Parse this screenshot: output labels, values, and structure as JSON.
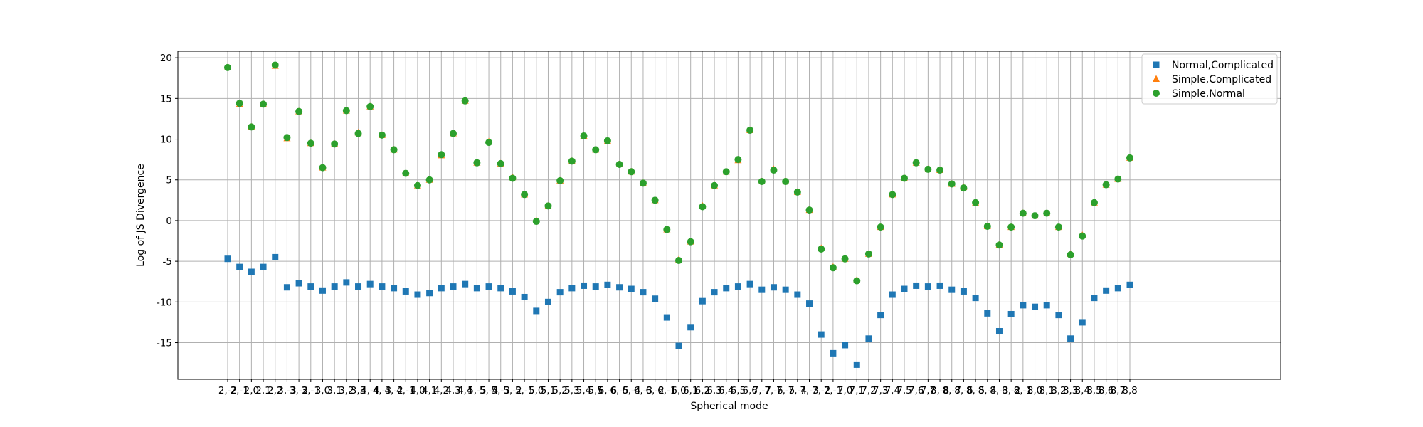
{
  "chart_data": {
    "type": "scatter",
    "title": "",
    "xlabel": "Spherical mode",
    "ylabel": "Log of JS Divergence",
    "ylim": [
      -19.5,
      20.8
    ],
    "yticks": [
      -15,
      -10,
      -5,
      0,
      5,
      10,
      15,
      20
    ],
    "grid": true,
    "legend_position": "top-right",
    "categories": [
      "2,-2",
      "2,-1",
      "2,0",
      "2,1",
      "2,2",
      "3,-3",
      "3,-2",
      "3,-1",
      "3,0",
      "3,1",
      "3,2",
      "3,3",
      "4,-4",
      "4,-3",
      "4,-2",
      "4,-1",
      "4,0",
      "4,1",
      "4,2",
      "4,3",
      "4,4",
      "5,-5",
      "5,-4",
      "5,-3",
      "5,-2",
      "5,-1",
      "5,0",
      "5,1",
      "5,2",
      "5,3",
      "5,4",
      "5,5",
      "6,-6",
      "6,-5",
      "6,-4",
      "6,-3",
      "6,-2",
      "6,-1",
      "6,0",
      "6,1",
      "6,2",
      "6,3",
      "6,4",
      "6,5",
      "6,6",
      "7,-7",
      "7,-6",
      "7,-5",
      "7,-4",
      "7,-3",
      "7,-2",
      "7,-1",
      "7,0",
      "7,1",
      "7,2",
      "7,3",
      "7,4",
      "7,5",
      "7,6",
      "7,7",
      "8,-8",
      "8,-7",
      "8,-6",
      "8,-5",
      "8,-4",
      "8,-3",
      "8,-2",
      "8,-1",
      "8,0",
      "8,1",
      "8,2",
      "8,3",
      "8,4",
      "8,5",
      "8,6",
      "8,7",
      "8,8"
    ],
    "series": [
      {
        "name": "Normal,Complicated",
        "marker": "square",
        "color": "#1f77b4",
        "values": [
          -4.7,
          -5.7,
          -6.3,
          -5.7,
          -4.5,
          -8.2,
          -7.7,
          -8.1,
          -8.6,
          -8.1,
          -7.6,
          -8.1,
          -7.8,
          -8.1,
          -8.3,
          -8.7,
          -9.1,
          -8.9,
          -8.3,
          -8.1,
          -7.8,
          -8.3,
          -8.1,
          -8.3,
          -8.7,
          -9.4,
          -11.1,
          -10.0,
          -8.8,
          -8.3,
          -8.0,
          -8.1,
          -7.9,
          -8.2,
          -8.4,
          -8.8,
          -9.6,
          -11.9,
          -15.4,
          -13.1,
          -9.9,
          -8.8,
          -8.3,
          -8.1,
          -7.8,
          -8.5,
          -8.2,
          -8.5,
          -9.1,
          -10.2,
          -14.0,
          -16.3,
          -15.3,
          -17.7,
          -14.5,
          -11.6,
          -9.1,
          -8.4,
          -8.0,
          -8.1,
          -8.0,
          -8.5,
          -8.7,
          -9.5,
          -11.4,
          -13.6,
          -11.5,
          -10.4,
          -10.6,
          -10.4,
          -11.6,
          -14.5,
          -12.5,
          -9.5,
          -8.6,
          -8.3,
          -7.9
        ]
      },
      {
        "name": "Simple,Complicated",
        "marker": "triangle",
        "color": "#ff7f0e",
        "values": [
          18.8,
          14.3,
          11.5,
          14.3,
          19.0,
          10.1,
          13.4,
          9.5,
          6.5,
          9.4,
          13.5,
          10.8,
          14.0,
          10.5,
          8.7,
          5.8,
          4.3,
          5.0,
          8.0,
          10.7,
          14.7,
          7.1,
          9.7,
          7.0,
          5.3,
          3.2,
          0.0,
          1.8,
          4.9,
          7.3,
          10.4,
          8.7,
          9.8,
          6.9,
          6.0,
          4.6,
          2.5,
          -1.1,
          -4.8,
          -2.6,
          1.8,
          4.3,
          6.0,
          7.4,
          11.1,
          4.8,
          6.3,
          4.8,
          3.5,
          1.3,
          -3.4,
          -5.7,
          -4.7,
          -7.3,
          -4.1,
          -0.8,
          3.2,
          5.2,
          7.1,
          6.3,
          6.2,
          4.5,
          4.1,
          2.2,
          -0.7,
          -3.0,
          -0.8,
          0.9,
          0.6,
          0.9,
          -0.8,
          -4.1,
          -1.8,
          2.2,
          4.4,
          5.1,
          7.7
        ]
      },
      {
        "name": "Simple,Normal",
        "marker": "circle",
        "color": "#2ca02c",
        "values": [
          18.8,
          14.4,
          11.5,
          14.3,
          19.1,
          10.2,
          13.4,
          9.5,
          6.5,
          9.4,
          13.5,
          10.7,
          14.0,
          10.5,
          8.7,
          5.8,
          4.3,
          5.0,
          8.1,
          10.7,
          14.7,
          7.1,
          9.6,
          7.0,
          5.2,
          3.2,
          -0.1,
          1.8,
          4.9,
          7.3,
          10.4,
          8.7,
          9.8,
          6.9,
          6.0,
          4.6,
          2.5,
          -1.1,
          -4.9,
          -2.6,
          1.7,
          4.3,
          6.0,
          7.5,
          11.1,
          4.8,
          6.2,
          4.8,
          3.5,
          1.3,
          -3.5,
          -5.8,
          -4.7,
          -7.4,
          -4.1,
          -0.8,
          3.2,
          5.2,
          7.1,
          6.3,
          6.2,
          4.5,
          4.0,
          2.2,
          -0.7,
          -3.0,
          -0.8,
          0.9,
          0.6,
          0.9,
          -0.8,
          -4.2,
          -1.9,
          2.2,
          4.4,
          5.1,
          7.7
        ]
      }
    ]
  }
}
